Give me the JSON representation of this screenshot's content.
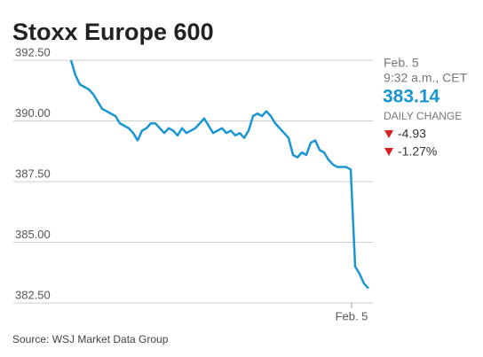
{
  "chart_data": {
    "type": "line",
    "title": "Stoxx Europe 600",
    "source": "Source: WSJ Market Data Group",
    "panel": {
      "date": "Feb. 5",
      "time": "9:32 a.m., CET",
      "last": "383.14",
      "change_label": "DAILY CHANGE",
      "change": "-4.93",
      "change_pct": "-1.27%"
    },
    "categories": [
      null,
      null,
      null,
      null,
      null,
      null,
      null,
      null,
      null,
      null,
      null,
      null,
      null,
      null,
      null,
      null,
      null,
      null,
      null,
      null,
      null,
      null,
      null,
      null,
      null,
      null,
      null,
      null,
      null,
      null,
      null,
      null,
      null,
      null,
      null,
      null,
      null,
      null,
      null,
      null,
      null,
      null,
      null,
      null,
      null,
      null,
      null,
      null,
      null,
      null,
      null,
      null,
      null,
      null,
      null,
      null,
      null,
      null,
      null,
      null,
      null,
      null,
      null,
      "Feb. 5",
      null,
      null,
      null,
      null
    ],
    "series": [
      {
        "name": "Stoxx Europe 600",
        "color": "#1a96d4",
        "values": [
          392.5,
          391.88,
          391.5,
          391.4,
          391.3,
          391.1,
          390.8,
          390.5,
          390.4,
          390.3,
          390.2,
          389.9,
          389.8,
          389.7,
          389.5,
          389.2,
          389.6,
          389.7,
          389.9,
          389.9,
          389.7,
          389.5,
          389.7,
          389.6,
          389.4,
          389.7,
          389.5,
          389.6,
          389.7,
          389.9,
          390.1,
          389.8,
          389.5,
          389.6,
          389.7,
          389.5,
          389.6,
          389.4,
          389.5,
          389.3,
          389.6,
          390.2,
          390.3,
          390.2,
          390.4,
          390.2,
          389.9,
          389.7,
          389.5,
          389.3,
          388.6,
          388.5,
          388.7,
          388.6,
          389.1,
          389.2,
          388.8,
          388.7,
          388.4,
          388.2,
          388.1,
          388.1,
          388.1,
          388.0,
          384.0,
          383.7,
          383.3,
          383.1
        ]
      }
    ],
    "ylim": [
      382.5,
      392.5
    ],
    "yticks": [
      {
        "value": 382.5,
        "label": "382.50"
      },
      {
        "value": 385,
        "label": "385.00"
      },
      {
        "value": 387.5,
        "label": "387.50"
      },
      {
        "value": 390,
        "label": "390.00"
      },
      {
        "value": 392.5,
        "label": "392.50"
      }
    ],
    "grid": true
  }
}
